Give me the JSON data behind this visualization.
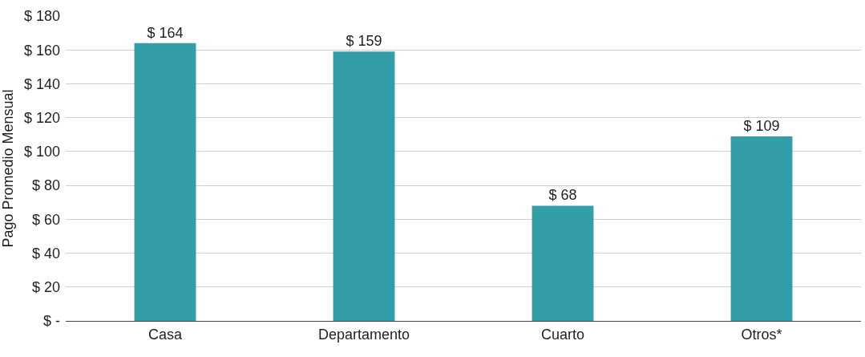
{
  "chart_data": {
    "type": "bar",
    "ylabel": "Pago Promedio Mensual",
    "categories": [
      "Casa",
      "Departamento",
      "Cuarto",
      "Otros*"
    ],
    "values": [
      164,
      159,
      68,
      109
    ],
    "value_labels": [
      "$ 164",
      "$ 159",
      "$ 68",
      "$ 109"
    ],
    "color": "#339da8",
    "ylim": [
      0,
      180
    ],
    "yticks": [
      {
        "value": 0,
        "label": "$ -"
      },
      {
        "value": 20,
        "label": "$ 20"
      },
      {
        "value": 40,
        "label": "$ 40"
      },
      {
        "value": 60,
        "label": "$ 60"
      },
      {
        "value": 80,
        "label": "$ 80"
      },
      {
        "value": 100,
        "label": "$ 100"
      },
      {
        "value": 120,
        "label": "$ 120"
      },
      {
        "value": 140,
        "label": "$ 140"
      },
      {
        "value": 160,
        "label": "$ 160"
      },
      {
        "value": 180,
        "label": "$ 180"
      }
    ],
    "grid": "y",
    "legend": false
  }
}
